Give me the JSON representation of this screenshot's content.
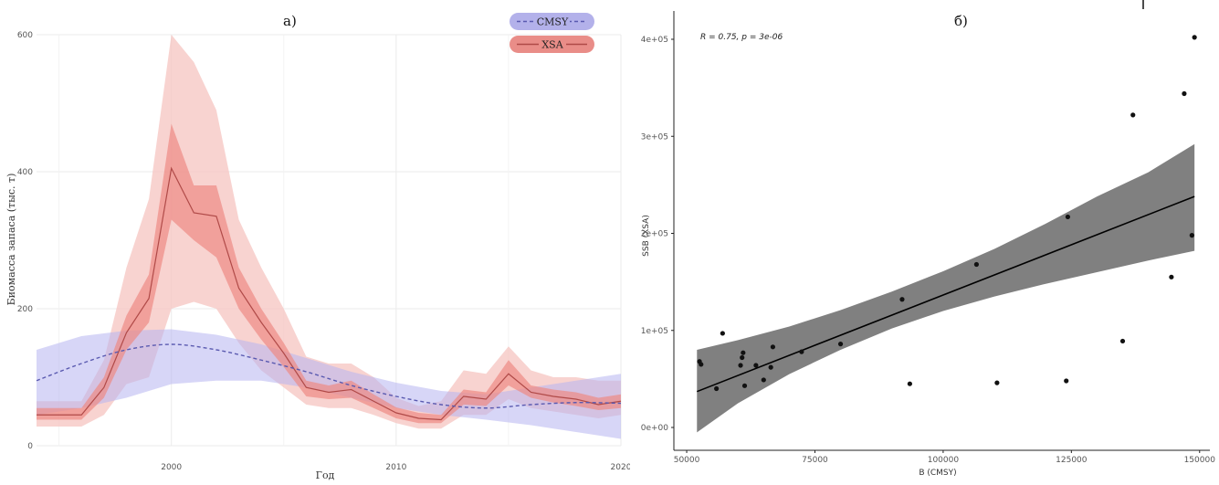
{
  "colors": {
    "cmsy_band": "#b7b5f0",
    "cmsy_line": "#5a5ab0",
    "xsa_outer": "#f6c4c0",
    "xsa_inner": "#ee8a85",
    "xsa_line": "#b04a48",
    "xsa_legend": "#e98d88",
    "cmsy_legend": "#b3b1ea",
    "grid": "#ebebeb",
    "scatter_band": "#808080",
    "point": "#111111"
  },
  "chart_data": [
    {
      "type": "line",
      "panel_label": "а)",
      "xlabel": "Год",
      "ylabel": "Биомасса запаса (тыс. т)",
      "xlim": [
        1994,
        2020
      ],
      "ylim": [
        0,
        600
      ],
      "x_ticks": [
        2000,
        2010,
        2020
      ],
      "x_tick_labels": [
        "2000",
        "2010",
        "2020"
      ],
      "y_ticks": [
        0,
        200,
        400,
        600
      ],
      "y_tick_labels": [
        "0",
        "200",
        "400",
        "600"
      ],
      "legend": [
        "CMSY",
        "XSA"
      ],
      "legend_position": "top-right",
      "grid": true,
      "series": [
        {
          "name": "XSA",
          "x": [
            1994,
            1996,
            1997,
            1998,
            1999,
            2000,
            2001,
            2002,
            2003,
            2004,
            2005,
            2006,
            2007,
            2008,
            2009,
            2010,
            2011,
            2012,
            2013,
            2014,
            2015,
            2016,
            2017,
            2018,
            2019,
            2020
          ],
          "values": [
            45,
            45,
            85,
            165,
            215,
            405,
            340,
            335,
            230,
            180,
            135,
            85,
            78,
            82,
            65,
            48,
            40,
            38,
            72,
            68,
            105,
            78,
            72,
            68,
            60,
            65
          ],
          "inner_low": [
            38,
            38,
            70,
            140,
            180,
            330,
            300,
            275,
            200,
            155,
            115,
            72,
            68,
            70,
            55,
            40,
            33,
            33,
            60,
            58,
            88,
            70,
            63,
            58,
            52,
            55
          ],
          "inner_high": [
            55,
            55,
            100,
            190,
            250,
            470,
            380,
            380,
            260,
            200,
            150,
            95,
            88,
            95,
            75,
            56,
            48,
            45,
            82,
            78,
            125,
            88,
            82,
            78,
            70,
            75
          ],
          "outer_low": [
            28,
            28,
            45,
            90,
            100,
            200,
            210,
            200,
            150,
            110,
            85,
            60,
            55,
            55,
            45,
            33,
            25,
            25,
            45,
            45,
            68,
            55,
            50,
            45,
            40,
            45
          ],
          "outer_high": [
            65,
            65,
            125,
            260,
            360,
            600,
            560,
            490,
            330,
            260,
            200,
            130,
            120,
            120,
            100,
            70,
            58,
            65,
            110,
            105,
            145,
            110,
            100,
            100,
            95,
            95
          ]
        },
        {
          "name": "CMSY",
          "x": [
            1994,
            1996,
            1998,
            2000,
            2002,
            2004,
            2006,
            2008,
            2010,
            2012,
            2014,
            2016,
            2018,
            2020
          ],
          "values": [
            95,
            120,
            140,
            148,
            140,
            125,
            108,
            88,
            72,
            60,
            55,
            60,
            63,
            62
          ],
          "low": [
            45,
            55,
            70,
            90,
            95,
            95,
            85,
            70,
            55,
            45,
            38,
            30,
            20,
            10
          ],
          "high": [
            140,
            160,
            168,
            170,
            162,
            148,
            128,
            108,
            92,
            80,
            75,
            85,
            95,
            105
          ]
        }
      ]
    },
    {
      "type": "scatter",
      "panel_label": "б)",
      "xlabel": "B (CMSY)",
      "ylabel": "SSB (XSA)",
      "annotation": "R = 0.75, p = 3e-06",
      "xlim": [
        50000,
        150000
      ],
      "ylim": [
        0,
        400000
      ],
      "x_ticks": [
        50000,
        75000,
        100000,
        125000,
        150000
      ],
      "x_tick_labels": [
        "50000",
        "75000",
        "100000",
        "125000",
        "150000"
      ],
      "y_ticks": [
        0,
        100000,
        200000,
        300000,
        400000
      ],
      "y_tick_labels": [
        "0e+00",
        "1e+05",
        "2e+05",
        "3e+05",
        "4e+05"
      ],
      "grid": false,
      "points": [
        {
          "x": 52500,
          "y": 68000
        },
        {
          "x": 52800,
          "y": 65000
        },
        {
          "x": 55800,
          "y": 40000
        },
        {
          "x": 57000,
          "y": 97000
        },
        {
          "x": 60500,
          "y": 64000
        },
        {
          "x": 60800,
          "y": 72000
        },
        {
          "x": 61000,
          "y": 77000
        },
        {
          "x": 61300,
          "y": 43000
        },
        {
          "x": 63500,
          "y": 64000
        },
        {
          "x": 65000,
          "y": 49000
        },
        {
          "x": 66400,
          "y": 62000
        },
        {
          "x": 66800,
          "y": 83000
        },
        {
          "x": 72400,
          "y": 78000
        },
        {
          "x": 80000,
          "y": 86000
        },
        {
          "x": 92000,
          "y": 132000
        },
        {
          "x": 93500,
          "y": 45000
        },
        {
          "x": 106500,
          "y": 168000
        },
        {
          "x": 110500,
          "y": 46000
        },
        {
          "x": 124000,
          "y": 48000
        },
        {
          "x": 124300,
          "y": 217000
        },
        {
          "x": 135000,
          "y": 89000
        },
        {
          "x": 137000,
          "y": 322000
        },
        {
          "x": 144500,
          "y": 155000
        },
        {
          "x": 147000,
          "y": 344000
        },
        {
          "x": 148500,
          "y": 198000
        },
        {
          "x": 149000,
          "y": 402000
        }
      ],
      "fit": {
        "x": [
          52000,
          149000
        ],
        "y": [
          37000,
          238000
        ]
      },
      "fit_band": {
        "x": [
          52000,
          60000,
          70000,
          80000,
          90000,
          100000,
          110000,
          120000,
          130000,
          140000,
          149000
        ],
        "low": [
          -5000,
          25000,
          55000,
          80000,
          102000,
          120000,
          135000,
          148000,
          160000,
          172000,
          182000
        ],
        "high": [
          80000,
          90000,
          104000,
          121000,
          140000,
          161000,
          184000,
          210000,
          238000,
          263000,
          292000
        ]
      }
    }
  ]
}
